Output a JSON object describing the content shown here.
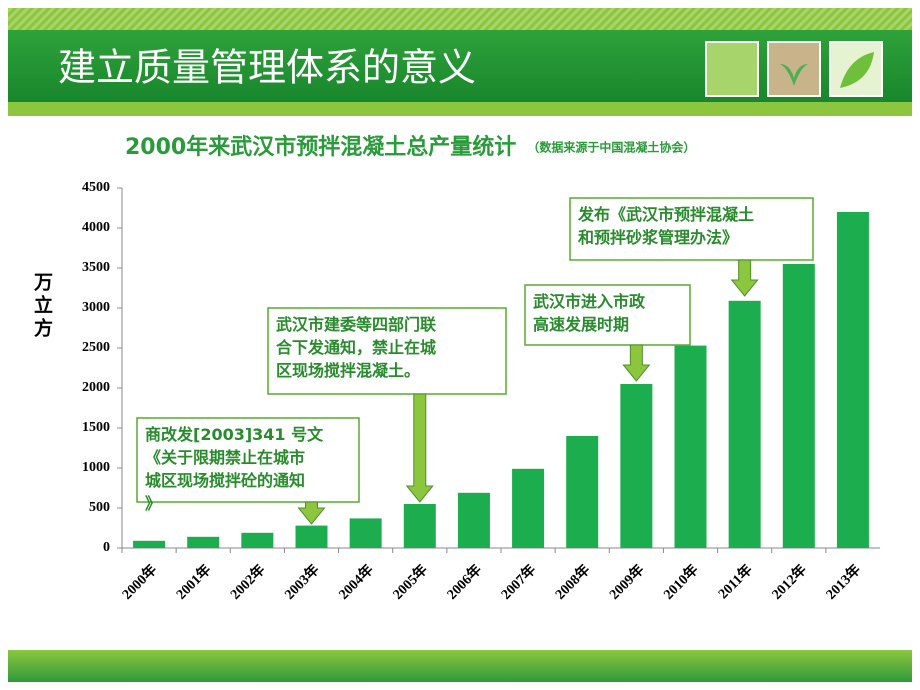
{
  "header": {
    "title": "建立质量管理体系的意义"
  },
  "chart_data": {
    "type": "bar",
    "title": "2000年来武汉市预拌混凝土总产量统计",
    "subtitle": "（数据来源于中国混凝土协会）",
    "y_label": "万立方",
    "categories": [
      "2000年",
      "2001年",
      "2002年",
      "2003年",
      "2004年",
      "2005年",
      "2006年",
      "2007年",
      "2008年",
      "2009年",
      "2010年",
      "2011年",
      "2012年",
      "2013年"
    ],
    "values": [
      90,
      140,
      190,
      280,
      370,
      550,
      690,
      990,
      1400,
      2050,
      2530,
      3090,
      3550,
      4200
    ],
    "color": "#1cad4f",
    "ylim": [
      0,
      4500
    ],
    "yticks": [
      0,
      500,
      1000,
      1500,
      2000,
      2500,
      3000,
      3500,
      4000,
      4500
    ],
    "annotations": [
      {
        "lines": [
          "商改发[2003]341 号文",
          "《关于限期禁止在城市",
          "城区现场搅拌砼的通知",
          "》"
        ]
      },
      {
        "lines": [
          "武汉市建委等四部门联",
          "合下发通知，禁止在城",
          "区现场搅拌混凝土。"
        ]
      },
      {
        "lines": [
          "武汉市进入市政",
          "高速发展时期"
        ]
      },
      {
        "lines": [
          "发布《武汉市预拌混凝土",
          "和预拌砂浆管理办法》"
        ]
      }
    ]
  }
}
